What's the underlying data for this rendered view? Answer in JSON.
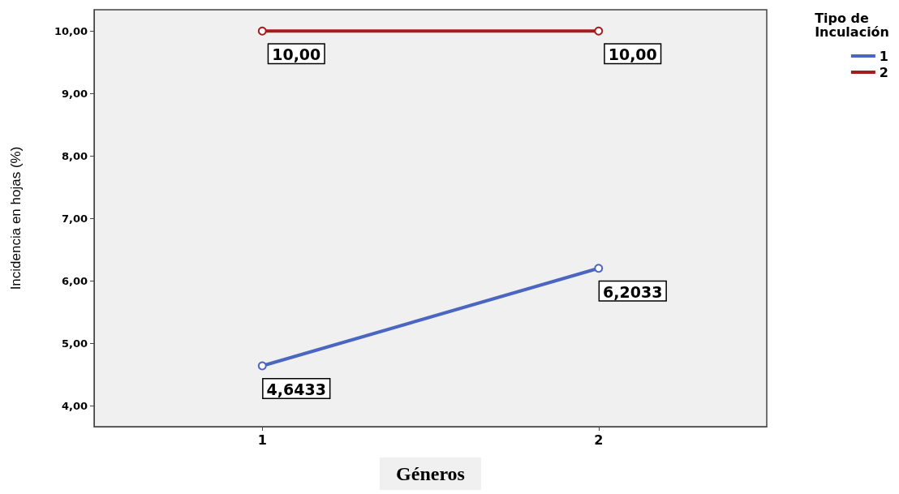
{
  "chart_data": {
    "type": "line",
    "xlabel": "Géneros",
    "ylabel": "Incidencia en hojas (%)",
    "legend_title": "Tipo de Inculación",
    "categories": [
      "1",
      "2"
    ],
    "series": [
      {
        "name": "1",
        "color": "#4a66c0",
        "values": [
          4.6433,
          6.2033
        ],
        "value_labels": [
          "4,6433",
          "6,2033"
        ]
      },
      {
        "name": "2",
        "color": "#a51c1c",
        "values": [
          10,
          10
        ],
        "value_labels": [
          "10,00",
          "10,00"
        ]
      }
    ],
    "ylim": [
      3.67,
      10.34
    ],
    "yticks": [
      {
        "value": 4,
        "label": "4,00"
      },
      {
        "value": 5,
        "label": "5,00"
      },
      {
        "value": 6,
        "label": "6,00"
      },
      {
        "value": 7,
        "label": "7,00"
      },
      {
        "value": 8,
        "label": "8,00"
      },
      {
        "value": 9,
        "label": "9,00"
      },
      {
        "value": 10,
        "label": "10,00"
      }
    ],
    "grid": false,
    "legend": "top right",
    "marker": "circle",
    "line_style": "solid"
  }
}
